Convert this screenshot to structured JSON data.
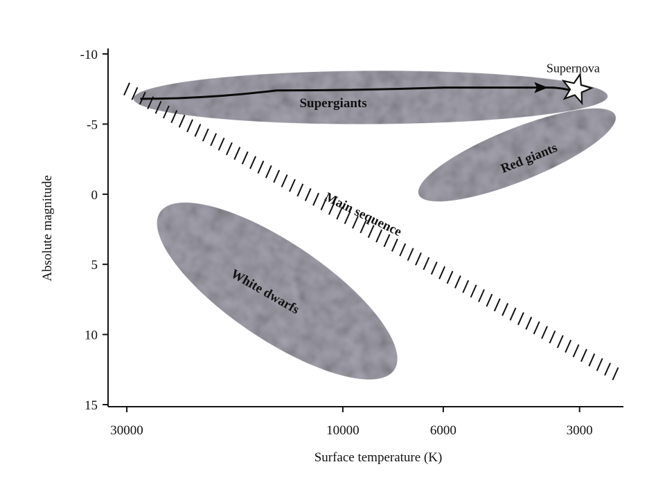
{
  "chart_data": {
    "type": "scatter",
    "xlabel": "Surface temperature (K)",
    "ylabel": "Absolute magnitude",
    "x_scale": "log",
    "x_reversed": true,
    "y_reversed": true,
    "xlim": [
      33000,
      2400
    ],
    "ylim": [
      -10,
      15
    ],
    "x_ticks": [
      {
        "value": 30000,
        "label": "30000"
      },
      {
        "value": 10000,
        "label": "10000"
      },
      {
        "value": 6000,
        "label": "6000"
      },
      {
        "value": 3000,
        "label": "3000"
      }
    ],
    "y_ticks": [
      {
        "value": -10,
        "label": "-10"
      },
      {
        "value": -5,
        "label": "-5"
      },
      {
        "value": 0,
        "label": "0"
      },
      {
        "value": 5,
        "label": "5"
      },
      {
        "value": 10,
        "label": "10"
      },
      {
        "value": 15,
        "label": "15"
      }
    ],
    "grid": false,
    "regions": [
      {
        "label": "Supergiants",
        "center": [
          9500,
          -6.8
        ],
        "extent_x": [
          29000,
          2600
        ],
        "extent_y": [
          -8.8,
          -5.0
        ],
        "color": "#9c9aa6"
      },
      {
        "label": "Red giants",
        "center": [
          3800,
          -2.8
        ],
        "extent_x": [
          6800,
          2500
        ],
        "extent_y": [
          -6.0,
          0.4
        ],
        "color": "#9c9aa6"
      },
      {
        "label": "White dwarfs",
        "center": [
          12500,
          6.6
        ],
        "extent_x": [
          25000,
          7800
        ],
        "extent_y": [
          0.5,
          13.3
        ],
        "color": "#9c9aa6"
      }
    ],
    "main_sequence": {
      "label": "Main sequence",
      "from": [
        30000,
        -7.5
      ],
      "to": [
        2500,
        12.8
      ]
    },
    "evolution_track": {
      "points": [
        [
          28000,
          -6.8
        ],
        [
          14000,
          -7.4
        ],
        [
          6000,
          -7.6
        ],
        [
          3500,
          -7.6
        ],
        [
          3050,
          -7.3
        ]
      ]
    },
    "annotations": [
      {
        "text": "Supernova",
        "at": [
          3000,
          -7.4
        ]
      }
    ]
  }
}
